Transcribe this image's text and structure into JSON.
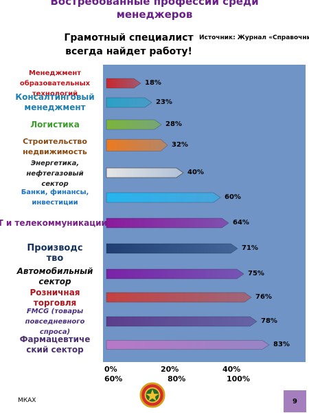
{
  "title": "Востребованные профессии среди менеджеров",
  "subtitle": "Грамотный специалист всегда найдет работу!",
  "source": "Источник: Журнал «Справочник кадро",
  "footer_left": "МКАХ",
  "page_number": "9",
  "axis": {
    "tick_line1": [
      "0%",
      "20%",
      "40%"
    ],
    "tick_line2": [
      "60%",
      "80%",
      "100%"
    ]
  },
  "chart_data": {
    "type": "bar",
    "orientation": "horizontal",
    "title": "Востребованные профессии среди менеджеров",
    "xlim": [
      0,
      100
    ],
    "categories": [
      "Менеджмент образовательных технологий",
      "Консалтинговый менеджмент",
      "Логистика",
      "Строительство недвижимость",
      "Энергетика, нефтегазовый сектор",
      "Банки, финансы, инвестиции",
      "IT и телекоммуникации",
      "Производство",
      "Автомобильный сектор",
      "Розничная торговля",
      "FMCG (товары повседневного спроса)",
      "Фармацевтический сектор"
    ],
    "values": [
      18,
      23,
      28,
      32,
      40,
      60,
      64,
      71,
      75,
      76,
      78,
      83
    ],
    "value_labels": [
      "18%",
      "23%",
      "28%",
      "32%",
      "40%",
      "60%",
      "64%",
      "71%",
      "75%",
      "76%",
      "78%",
      "83%"
    ],
    "display_labels": [
      "Менеджмент\nобразовательных\nтехнологий",
      "Консалтинговый\nменеджмент",
      "Логистика",
      "Строительство\nнедвижимость",
      "Энергетика,\nнефтегазовый\nсектор",
      "Банки, финансы,\nинвестиции",
      "IT и телекоммуникации",
      "Производс\nтво",
      "Автомобильный\nсектор",
      "Розничная\nторговля",
      "FMCG (товары\nповседневного\nспроса)",
      "Фармацевтиче\nский сектор"
    ],
    "bar_colors": [
      "#c8282d",
      "#2aa1c6",
      "#7db43c",
      "#ec7a1f",
      "#e6e6e6",
      "#26b4ee",
      "#8b1a9c",
      "#1f3f72",
      "#7a22a6",
      "#c5413f",
      "#5c3d8c",
      "#b778c7"
    ],
    "label_colors": [
      "#c0141b",
      "#1d7fb0",
      "#3c9d2a",
      "#8b4a12",
      "#222222",
      "#1c72c4",
      "#7a1f8a",
      "#14315d",
      "#111111",
      "#b0151c",
      "#4a2f7e",
      "#4b2f70"
    ]
  }
}
